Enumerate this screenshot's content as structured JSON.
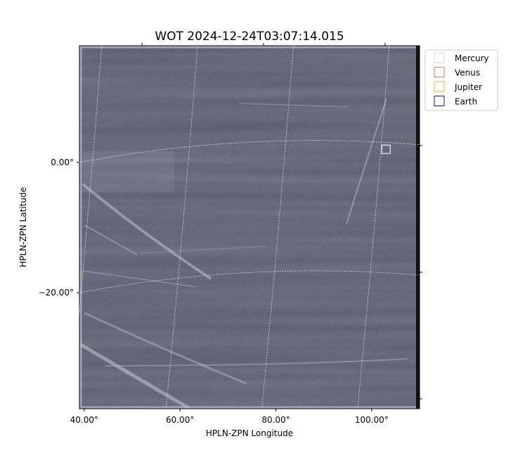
{
  "chart_data": {
    "type": "scatter",
    "title": "WOT 2024-12-24T03:07:14.015",
    "x_label": "HPLN-ZPN Longitude",
    "y_label": "HPLN-ZPN Latitude",
    "xlim": [
      39.0,
      110.0
    ],
    "ylim": [
      -37.8,
      17.9
    ],
    "xticks": [
      {
        "value": 40,
        "label": "40.00°"
      },
      {
        "value": 60,
        "label": "60.00°"
      },
      {
        "value": 80,
        "label": "80.00°"
      },
      {
        "value": 100,
        "label": "100.00°"
      }
    ],
    "yticks": [
      {
        "value": 0,
        "label": "0.00°"
      },
      {
        "value": -20,
        "label": "−20.00°"
      }
    ],
    "grid": true,
    "legend": "upper right outside",
    "series": [
      {
        "name": "Mercury",
        "color": "#d8d8d8",
        "x": [
          103
        ],
        "y": [
          2
        ]
      },
      {
        "name": "Venus",
        "color": "#e07b39",
        "x": [],
        "y": []
      },
      {
        "name": "Jupiter",
        "color": "#e8b530",
        "x": [],
        "y": []
      },
      {
        "name": "Earth",
        "color": "#1a1a6e",
        "x": [],
        "y": []
      }
    ]
  }
}
